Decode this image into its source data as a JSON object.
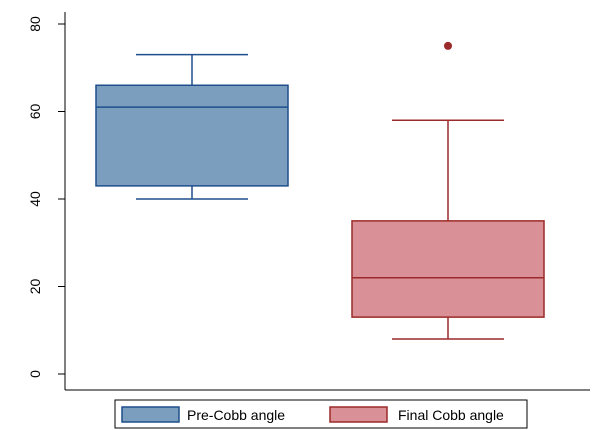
{
  "chart_data": {
    "type": "box",
    "title": "",
    "xlabel": "",
    "ylabel": "",
    "ylim": [
      0,
      80
    ],
    "yticks": [
      0,
      20,
      40,
      60,
      80
    ],
    "grid": false,
    "legend_position": "bottom",
    "series": [
      {
        "name": "Pre-Cobb angle",
        "min": 40,
        "q1": 43,
        "median": 61,
        "q3": 66,
        "max": 73,
        "outliers": [],
        "fill": "#7b9ebe",
        "stroke": "#1f4e8c"
      },
      {
        "name": "Final Cobb angle",
        "min": 8,
        "q1": 13,
        "median": 22,
        "q3": 35,
        "max": 58,
        "outliers": [
          75
        ],
        "fill": "#d99097",
        "stroke": "#9c2a2a"
      }
    ]
  }
}
